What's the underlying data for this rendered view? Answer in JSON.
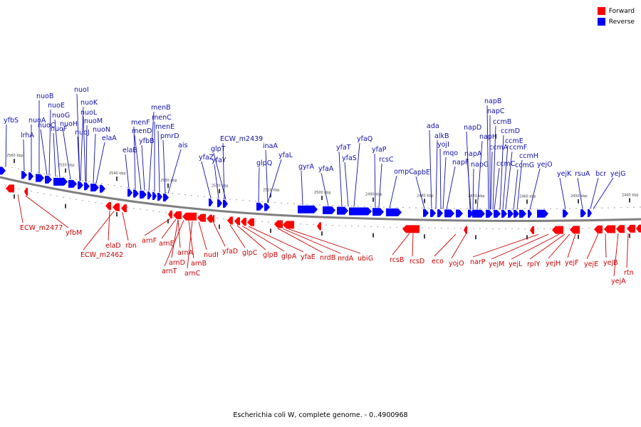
{
  "caption": "Escherichia coli W, complete genome. - 0..4900968",
  "colors": {
    "forward": "#ff0000",
    "reverse": "#0000ff",
    "forward_label": "#cc0000",
    "reverse_label": "#1010aa",
    "backbone": "#808080"
  },
  "legend": [
    {
      "label": "Forward",
      "color": "#ff0000"
    },
    {
      "label": "Reverse",
      "color": "#0000ff"
    }
  ],
  "ticks": [
    "2560 kbp",
    "2550 kbp",
    "2540 kbp",
    "2530 kbp",
    "2520 kbp",
    "2510 kbp",
    "2500 kbp",
    "2490 kbp",
    "2480 kbp",
    "2470 kbp",
    "2460 kbp",
    "2450 kbp",
    "2440 kbp"
  ],
  "reverse_labels": [
    "yfbS",
    "lrhA",
    "nuoA",
    "nuoB",
    "nuoC",
    "nuoE",
    "nuoF",
    "nuoG",
    "nuoH",
    "nuoI",
    "nuoJ",
    "nuoK",
    "nuoL",
    "nuoM",
    "nuoN",
    "elaA",
    "elaB",
    "menF",
    "menD",
    "yfbB",
    "menB",
    "menC",
    "menE",
    "pmrD",
    "ais",
    "yfaZ",
    "yfaY",
    "ECW_m2439",
    "glpT",
    "glpQ",
    "inaA",
    "yfaL",
    "gyrA",
    "yfaA",
    "yfaT",
    "yfaS",
    "yfaQ",
    "yfaP",
    "rcsC",
    "ompC",
    "apbE",
    "ada",
    "alkB",
    "yojI",
    "mqo",
    "napF",
    "napD",
    "napA",
    "napG",
    "napH",
    "napB",
    "napC",
    "ccmA",
    "ccmB",
    "ccmC",
    "ccmD",
    "ccmE",
    "ccmF",
    "ccmG",
    "ccmH",
    "yejO",
    "yejK",
    "rsuA",
    "bcr",
    "yejG"
  ],
  "forward_labels": [
    "ECW_m2477",
    "yfbM",
    "elaD",
    "ECW_m2462",
    "rbn",
    "arnF",
    "arnE",
    "arnA",
    "arnD",
    "arnT",
    "arnB",
    "arnC",
    "nudI",
    "yfaD",
    "glpC",
    "glpB",
    "glpA",
    "yfaE",
    "nrdB",
    "nrdA",
    "ubiG",
    "rcsB",
    "rcsD",
    "eco",
    "yojO",
    "narP",
    "yejM",
    "yejL",
    "rplY",
    "yejH",
    "yejF",
    "yejE",
    "yejB",
    "yejA",
    "rtn"
  ]
}
